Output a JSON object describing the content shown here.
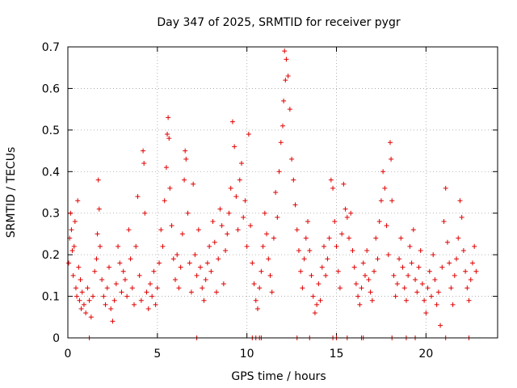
{
  "chart_data": {
    "type": "scatter",
    "title": "Day 347 of 2025, SRMTID for receiver pygr",
    "xlabel": "GPS time / hours",
    "ylabel": "SRMTID / TECUs",
    "xlim": [
      0,
      24
    ],
    "ylim": [
      0,
      0.7
    ],
    "xticks": [
      {
        "value": 0,
        "label": "0"
      },
      {
        "value": 5,
        "label": "5"
      },
      {
        "value": 10,
        "label": "10"
      },
      {
        "value": 15,
        "label": "15"
      },
      {
        "value": 20,
        "label": "20"
      }
    ],
    "yticks": [
      {
        "value": 0,
        "label": "0"
      },
      {
        "value": 0.1,
        "label": "0.1"
      },
      {
        "value": 0.2,
        "label": "0.2"
      },
      {
        "value": 0.3,
        "label": "0.3"
      },
      {
        "value": 0.4,
        "label": "0.4"
      },
      {
        "value": 0.5,
        "label": "0.5"
      },
      {
        "value": 0.6,
        "label": "0.6"
      },
      {
        "value": 0.7,
        "label": "0.7"
      }
    ],
    "grid": true,
    "marker": "+",
    "marker_color": "#e00000",
    "series": [
      {
        "name": "SRMTID",
        "points": [
          [
            0.05,
            0.18
          ],
          [
            0.1,
            0.24
          ],
          [
            0.15,
            0.3
          ],
          [
            0.2,
            0.26
          ],
          [
            0.25,
            0.21
          ],
          [
            0.3,
            0.15
          ],
          [
            0.35,
            0.22
          ],
          [
            0.4,
            0.28
          ],
          [
            0.45,
            0.12
          ],
          [
            0.5,
            0.1
          ],
          [
            0.55,
            0.33
          ],
          [
            0.6,
            0.17
          ],
          [
            0.65,
            0.09
          ],
          [
            0.7,
            0.14
          ],
          [
            0.75,
            0.07
          ],
          [
            0.8,
            0.11
          ],
          [
            0.9,
            0.08
          ],
          [
            1.0,
            0.06
          ],
          [
            1.1,
            0.12
          ],
          [
            1.2,
            0.09
          ],
          [
            1.3,
            0.05
          ],
          [
            1.4,
            0.1
          ],
          [
            1.5,
            0.16
          ],
          [
            1.6,
            0.19
          ],
          [
            1.65,
            0.25
          ],
          [
            1.7,
            0.38
          ],
          [
            1.75,
            0.31
          ],
          [
            1.8,
            0.22
          ],
          [
            1.9,
            0.14
          ],
          [
            2.0,
            0.1
          ],
          [
            2.1,
            0.08
          ],
          [
            2.2,
            0.12
          ],
          [
            2.3,
            0.17
          ],
          [
            2.4,
            0.07
          ],
          [
            2.5,
            0.04
          ],
          [
            2.6,
            0.09
          ],
          [
            2.7,
            0.13
          ],
          [
            2.8,
            0.22
          ],
          [
            2.9,
            0.18
          ],
          [
            3.0,
            0.11
          ],
          [
            3.1,
            0.16
          ],
          [
            3.2,
            0.14
          ],
          [
            3.3,
            0.1
          ],
          [
            3.4,
            0.26
          ],
          [
            3.5,
            0.19
          ],
          [
            3.6,
            0.12
          ],
          [
            3.7,
            0.08
          ],
          [
            3.8,
            0.22
          ],
          [
            3.9,
            0.34
          ],
          [
            4.0,
            0.15
          ],
          [
            4.1,
            0.09
          ],
          [
            4.2,
            0.45
          ],
          [
            4.25,
            0.42
          ],
          [
            4.3,
            0.3
          ],
          [
            4.4,
            0.11
          ],
          [
            4.5,
            0.07
          ],
          [
            4.6,
            0.13
          ],
          [
            4.7,
            0.1
          ],
          [
            4.8,
            0.16
          ],
          [
            4.9,
            0.08
          ],
          [
            5.0,
            0.12
          ],
          [
            5.1,
            0.18
          ],
          [
            5.2,
            0.26
          ],
          [
            5.3,
            0.22
          ],
          [
            5.4,
            0.33
          ],
          [
            5.5,
            0.41
          ],
          [
            5.55,
            0.49
          ],
          [
            5.6,
            0.53
          ],
          [
            5.65,
            0.48
          ],
          [
            5.7,
            0.36
          ],
          [
            5.8,
            0.27
          ],
          [
            5.9,
            0.19
          ],
          [
            6.0,
            0.14
          ],
          [
            6.1,
            0.2
          ],
          [
            6.2,
            0.12
          ],
          [
            6.3,
            0.17
          ],
          [
            6.4,
            0.25
          ],
          [
            6.5,
            0.38
          ],
          [
            6.55,
            0.45
          ],
          [
            6.6,
            0.43
          ],
          [
            6.7,
            0.3
          ],
          [
            6.8,
            0.18
          ],
          [
            6.9,
            0.11
          ],
          [
            7.0,
            0.37
          ],
          [
            7.1,
            0.2
          ],
          [
            7.2,
            0.15
          ],
          [
            7.3,
            0.26
          ],
          [
            7.4,
            0.17
          ],
          [
            7.5,
            0.12
          ],
          [
            7.6,
            0.09
          ],
          [
            7.7,
            0.14
          ],
          [
            7.8,
            0.18
          ],
          [
            7.9,
            0.22
          ],
          [
            8.0,
            0.16
          ],
          [
            8.1,
            0.28
          ],
          [
            8.2,
            0.23
          ],
          [
            8.3,
            0.11
          ],
          [
            8.4,
            0.19
          ],
          [
            8.5,
            0.31
          ],
          [
            8.6,
            0.27
          ],
          [
            8.7,
            0.13
          ],
          [
            8.8,
            0.21
          ],
          [
            8.9,
            0.25
          ],
          [
            9.0,
            0.3
          ],
          [
            9.1,
            0.36
          ],
          [
            9.2,
            0.52
          ],
          [
            9.3,
            0.46
          ],
          [
            9.4,
            0.34
          ],
          [
            9.5,
            0.26
          ],
          [
            9.6,
            0.38
          ],
          [
            9.7,
            0.42
          ],
          [
            9.8,
            0.29
          ],
          [
            9.9,
            0.33
          ],
          [
            10.0,
            0.22
          ],
          [
            10.1,
            0.49
          ],
          [
            10.2,
            0.27
          ],
          [
            10.3,
            0.18
          ],
          [
            10.4,
            0.13
          ],
          [
            10.5,
            0.09
          ],
          [
            10.6,
            0.07
          ],
          [
            10.7,
            0.12
          ],
          [
            10.8,
            0.16
          ],
          [
            10.9,
            0.22
          ],
          [
            11.0,
            0.3
          ],
          [
            11.1,
            0.25
          ],
          [
            11.2,
            0.19
          ],
          [
            11.3,
            0.15
          ],
          [
            11.4,
            0.11
          ],
          [
            11.5,
            0.24
          ],
          [
            11.6,
            0.35
          ],
          [
            11.7,
            0.29
          ],
          [
            11.8,
            0.4
          ],
          [
            11.9,
            0.47
          ],
          [
            12.0,
            0.51
          ],
          [
            12.05,
            0.57
          ],
          [
            12.1,
            0.69
          ],
          [
            12.15,
            0.62
          ],
          [
            12.2,
            0.67
          ],
          [
            12.3,
            0.63
          ],
          [
            12.4,
            0.55
          ],
          [
            12.5,
            0.43
          ],
          [
            12.6,
            0.38
          ],
          [
            12.7,
            0.32
          ],
          [
            12.8,
            0.26
          ],
          [
            12.9,
            0.21
          ],
          [
            13.0,
            0.16
          ],
          [
            13.1,
            0.12
          ],
          [
            13.2,
            0.19
          ],
          [
            13.3,
            0.24
          ],
          [
            13.4,
            0.28
          ],
          [
            13.5,
            0.21
          ],
          [
            13.6,
            0.15
          ],
          [
            13.7,
            0.1
          ],
          [
            13.8,
            0.06
          ],
          [
            13.9,
            0.08
          ],
          [
            14.0,
            0.13
          ],
          [
            14.1,
            0.09
          ],
          [
            14.2,
            0.17
          ],
          [
            14.3,
            0.22
          ],
          [
            14.4,
            0.15
          ],
          [
            14.5,
            0.19
          ],
          [
            14.6,
            0.24
          ],
          [
            14.7,
            0.38
          ],
          [
            14.8,
            0.36
          ],
          [
            14.9,
            0.28
          ],
          [
            15.0,
            0.22
          ],
          [
            15.1,
            0.16
          ],
          [
            15.2,
            0.12
          ],
          [
            15.3,
            0.25
          ],
          [
            15.4,
            0.37
          ],
          [
            15.5,
            0.31
          ],
          [
            15.6,
            0.29
          ],
          [
            15.7,
            0.24
          ],
          [
            15.8,
            0.3
          ],
          [
            15.9,
            0.21
          ],
          [
            16.0,
            0.17
          ],
          [
            16.1,
            0.13
          ],
          [
            16.2,
            0.1
          ],
          [
            16.3,
            0.08
          ],
          [
            16.4,
            0.12
          ],
          [
            16.5,
            0.18
          ],
          [
            16.6,
            0.15
          ],
          [
            16.7,
            0.21
          ],
          [
            16.8,
            0.14
          ],
          [
            16.9,
            0.11
          ],
          [
            17.0,
            0.09
          ],
          [
            17.1,
            0.16
          ],
          [
            17.2,
            0.24
          ],
          [
            17.3,
            0.19
          ],
          [
            17.4,
            0.28
          ],
          [
            17.5,
            0.33
          ],
          [
            17.6,
            0.4
          ],
          [
            17.7,
            0.36
          ],
          [
            17.8,
            0.27
          ],
          [
            17.9,
            0.2
          ],
          [
            18.0,
            0.47
          ],
          [
            18.05,
            0.43
          ],
          [
            18.1,
            0.33
          ],
          [
            18.2,
            0.15
          ],
          [
            18.3,
            0.1
          ],
          [
            18.4,
            0.13
          ],
          [
            18.5,
            0.19
          ],
          [
            18.6,
            0.24
          ],
          [
            18.7,
            0.17
          ],
          [
            18.8,
            0.12
          ],
          [
            18.9,
            0.09
          ],
          [
            19.0,
            0.15
          ],
          [
            19.1,
            0.22
          ],
          [
            19.2,
            0.18
          ],
          [
            19.3,
            0.26
          ],
          [
            19.4,
            0.14
          ],
          [
            19.5,
            0.11
          ],
          [
            19.6,
            0.17
          ],
          [
            19.7,
            0.21
          ],
          [
            19.8,
            0.13
          ],
          [
            19.9,
            0.09
          ],
          [
            20.0,
            0.06
          ],
          [
            20.1,
            0.12
          ],
          [
            20.2,
            0.16
          ],
          [
            20.3,
            0.1
          ],
          [
            20.4,
            0.2
          ],
          [
            20.5,
            0.14
          ],
          [
            20.6,
            0.08
          ],
          [
            20.7,
            0.11
          ],
          [
            20.8,
            0.03
          ],
          [
            20.9,
            0.17
          ],
          [
            21.0,
            0.28
          ],
          [
            21.1,
            0.36
          ],
          [
            21.2,
            0.23
          ],
          [
            21.3,
            0.18
          ],
          [
            21.4,
            0.12
          ],
          [
            21.5,
            0.08
          ],
          [
            21.6,
            0.15
          ],
          [
            21.7,
            0.19
          ],
          [
            21.8,
            0.24
          ],
          [
            21.9,
            0.33
          ],
          [
            22.0,
            0.29
          ],
          [
            22.1,
            0.21
          ],
          [
            22.2,
            0.16
          ],
          [
            22.3,
            0.12
          ],
          [
            22.4,
            0.09
          ],
          [
            22.5,
            0.14
          ],
          [
            22.6,
            0.18
          ],
          [
            22.7,
            0.22
          ],
          [
            22.8,
            0.16
          ]
        ]
      }
    ],
    "zero_marks": [
      1.2,
      7.2,
      10.3,
      10.5,
      10.7,
      10.8,
      12.8,
      13.5,
      14.8,
      15.0,
      15.6,
      16.4,
      16.5,
      18.1,
      18.9,
      19.4,
      21.1,
      22.4
    ]
  }
}
